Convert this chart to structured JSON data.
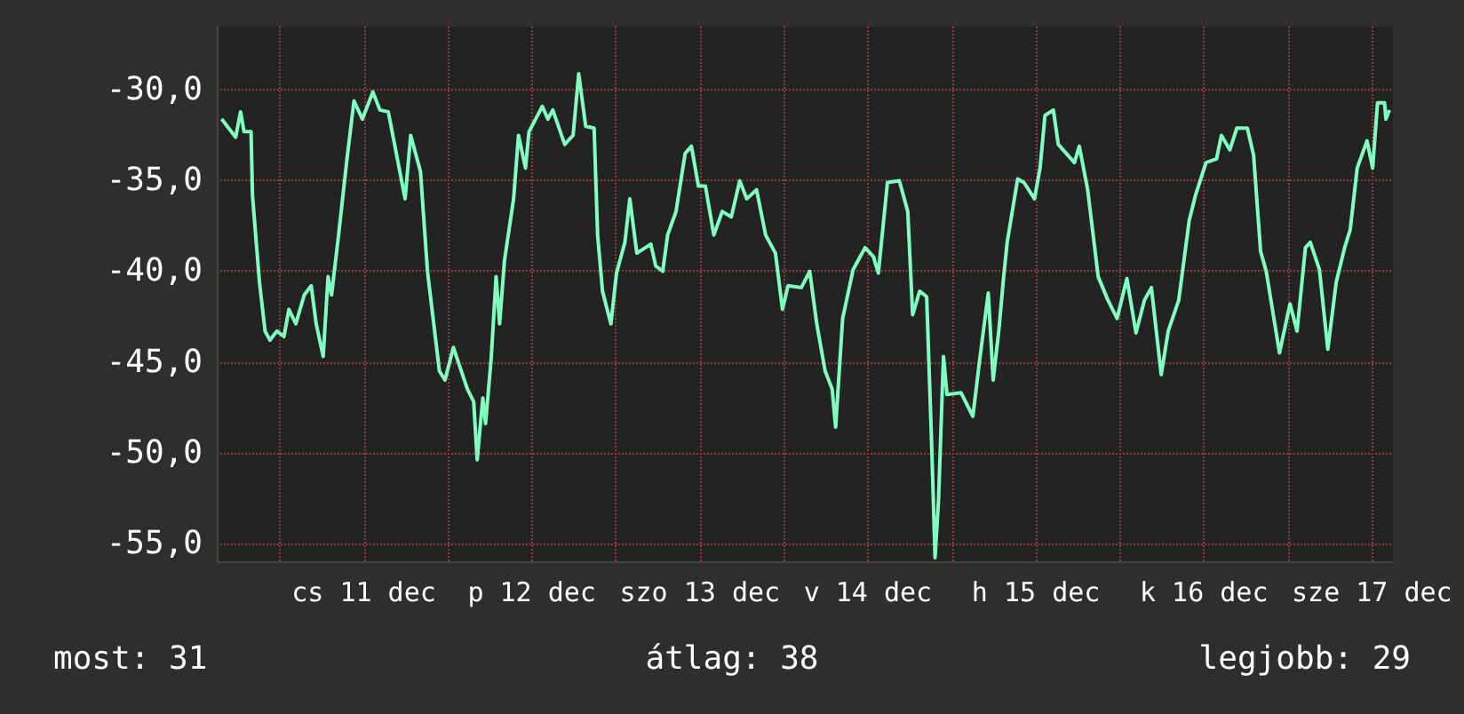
{
  "chart_data": {
    "type": "line",
    "x": [
      "--12-10T15:42",
      "--12-10T16:30",
      "--12-10T17:42",
      "--12-10T18:24",
      "--12-10T18:54",
      "--12-10T19:54",
      "--12-10T20:06",
      "--12-10T21:06",
      "--12-10T21:54",
      "--12-10T22:36",
      "--12-10T23:36",
      "--12-11T00:36",
      "--12-11T01:18",
      "--12-11T02:18",
      "--12-11T03:30",
      "--12-11T04:30",
      "--12-11T05:12",
      "--12-11T06:12",
      "--12-11T06:54",
      "--12-11T07:24",
      "--12-11T08:24",
      "--12-11T09:36",
      "--12-11T10:36",
      "--12-11T11:48",
      "--12-11T13:18",
      "--12-11T14:18",
      "--12-11T15:30",
      "--12-11T16:42",
      "--12-11T17:54",
      "--12-11T18:42",
      "--12-11T20:06",
      "--12-11T21:06",
      "--12-11T22:48",
      "--12-11T23:36",
      "--12-12T00:48",
      "--12-12T02:48",
      "--12-12T03:42",
      "--12-12T04:12",
      "--12-12T05:00",
      "--12-12T05:24",
      "--12-12T06:12",
      "--12-12T06:54",
      "--12-12T07:24",
      "--12-12T08:06",
      "--12-12T09:24",
      "--12-12T10:06",
      "--12-12T11:06",
      "--12-12T11:36",
      "--12-12T13:30",
      "--12-12T14:18",
      "--12-12T15:00",
      "--12-12T16:42",
      "--12-12T17:54",
      "--12-12T18:42",
      "--12-12T19:42",
      "--12-12T20:54",
      "--12-12T21:24",
      "--12-12T22:06",
      "--12-12T23:18",
      "--12-13T00:06",
      "--12-13T01:18",
      "--12-13T02:00",
      "--12-13T03:00",
      "--12-13T05:00",
      "--12-13T05:42",
      "--12-13T06:42",
      "--12-13T07:24",
      "--12-13T08:36",
      "--12-13T09:54",
      "--12-13T10:48",
      "--12-13T11:48",
      "--12-13T12:48",
      "--12-13T14:00",
      "--12-13T15:12",
      "--12-13T16:30",
      "--12-13T17:42",
      "--12-13T18:42",
      "--12-13T20:06",
      "--12-13T21:24",
      "--12-13T22:48",
      "--12-13T23:48",
      "--12-14T00:36",
      "--12-14T02:30",
      "--12-14T03:42",
      "--12-14T04:42",
      "--12-14T05:54",
      "--12-14T06:54",
      "--12-14T07:24",
      "--12-14T08:24",
      "--12-14T09:54",
      "--12-14T11:36",
      "--12-14T12:48",
      "--12-14T13:30",
      "--12-14T14:48",
      "--12-14T16:30",
      "--12-14T17:42",
      "--12-14T18:24",
      "--12-14T19:24",
      "--12-14T20:24",
      "--12-14T21:06",
      "--12-14T21:36",
      "--12-14T22:06",
      "--12-14T22:48",
      "--12-14T23:18",
      "--12-15T01:18",
      "--12-15T03:00",
      "--12-15T04:00",
      "--12-15T05:12",
      "--12-15T05:54",
      "--12-15T06:42",
      "--12-15T07:24",
      "--12-15T07:54",
      "--12-15T09:24",
      "--12-15T10:18",
      "--12-15T11:48",
      "--12-15T12:36",
      "--12-15T13:18",
      "--12-15T14:30",
      "--12-15T15:12",
      "--12-15T17:30",
      "--12-15T18:12",
      "--12-15T19:24",
      "--12-15T20:54",
      "--12-15T22:18",
      "--12-15T23:36",
      "--12-16T01:00",
      "--12-16T02:18",
      "--12-16T03:30",
      "--12-16T04:30",
      "--12-16T05:54",
      "--12-16T06:54",
      "--12-16T08:24",
      "--12-16T09:54",
      "--12-16T10:48",
      "--12-16T12:18",
      "--12-16T13:48",
      "--12-16T14:30",
      "--12-16T15:42",
      "--12-16T16:42",
      "--12-16T18:12",
      "--12-16T19:06",
      "--12-16T20:06",
      "--12-16T20:54",
      "--12-16T22:48",
      "--12-17T00:18",
      "--12-17T01:18",
      "--12-17T02:30",
      "--12-17T03:12",
      "--12-17T04:30",
      "--12-17T05:42",
      "--12-17T06:54",
      "--12-17T08:06",
      "--12-17T08:54",
      "--12-17T09:54",
      "--12-17T11:18",
      "--12-17T12:06",
      "--12-17T12:48",
      "--12-17T13:48",
      "--12-17T14:00",
      "--12-17T14:30"
    ],
    "series": [
      {
        "color": "#80ffbf",
        "values": [
          -31.6,
          -32.0,
          -32.6,
          -31.2,
          -32.3,
          -32.3,
          -35.8,
          -40.6,
          -43.3,
          -43.8,
          -43.3,
          -43.6,
          -42.1,
          -42.9,
          -41.3,
          -40.8,
          -42.9,
          -44.7,
          -40.3,
          -41.3,
          -38.0,
          -33.8,
          -30.6,
          -31.6,
          -30.1,
          -31.1,
          -31.2,
          -33.6,
          -36.0,
          -32.5,
          -34.5,
          -40.0,
          -45.5,
          -46.0,
          -44.2,
          -46.5,
          -47.2,
          -50.4,
          -47.0,
          -48.4,
          -44.8,
          -40.3,
          -42.9,
          -39.4,
          -36.0,
          -32.5,
          -34.3,
          -32.3,
          -30.9,
          -31.6,
          -31.1,
          -33.0,
          -32.5,
          -29.1,
          -32.0,
          -32.1,
          -38.0,
          -41.1,
          -42.9,
          -40.1,
          -38.4,
          -36.0,
          -39.0,
          -38.5,
          -39.7,
          -40.0,
          -38.0,
          -36.7,
          -33.5,
          -33.1,
          -35.3,
          -35.3,
          -38.0,
          -36.7,
          -37.0,
          -35.0,
          -36.0,
          -35.5,
          -38.0,
          -39.0,
          -42.1,
          -40.8,
          -40.9,
          -40.0,
          -42.9,
          -45.5,
          -46.5,
          -48.6,
          -42.6,
          -39.9,
          -38.7,
          -39.2,
          -40.1,
          -35.1,
          -35.0,
          -36.7,
          -42.4,
          -41.1,
          -41.4,
          -49.4,
          -55.8,
          -52.6,
          -44.7,
          -46.8,
          -46.7,
          -48.0,
          -44.8,
          -41.2,
          -46.0,
          -43.3,
          -40.3,
          -38.4,
          -34.9,
          -35.1,
          -36.0,
          -34.3,
          -31.4,
          -31.1,
          -33.0,
          -34.0,
          -33.1,
          -35.5,
          -40.3,
          -41.6,
          -42.6,
          -40.4,
          -43.4,
          -41.6,
          -40.9,
          -45.7,
          -43.3,
          -41.6,
          -37.2,
          -35.8,
          -34.0,
          -33.8,
          -32.5,
          -33.3,
          -32.1,
          -32.1,
          -33.6,
          -38.9,
          -40.0,
          -44.5,
          -41.8,
          -43.3,
          -38.7,
          -38.4,
          -39.9,
          -44.3,
          -40.6,
          -38.7,
          -37.7,
          -34.3,
          -32.8,
          -34.3,
          -30.7,
          -30.7,
          -31.6,
          -31.1
        ]
      }
    ],
    "xlim": [
      "--12-10T15:00",
      "--12-17T15:00"
    ],
    "xticks": [
      {
        "value": "--12-11",
        "label": null
      },
      {
        "value": "--12-11T12:00",
        "label": "cs 11 dec"
      },
      {
        "value": "--12-12",
        "label": null
      },
      {
        "value": "--12-12T12:00",
        "label": "p 12 dec"
      },
      {
        "value": "--12-13",
        "label": null
      },
      {
        "value": "--12-13T12:00",
        "label": "szo 13 dec"
      },
      {
        "value": "--12-14",
        "label": null
      },
      {
        "value": "--12-14T12:00",
        "label": "v 14 dec"
      },
      {
        "value": "--12-15",
        "label": null
      },
      {
        "value": "--12-15T12:00",
        "label": "h 15 dec"
      },
      {
        "value": "--12-16",
        "label": null
      },
      {
        "value": "--12-16T12:00",
        "label": "k 16 dec"
      },
      {
        "value": "--12-17",
        "label": null
      },
      {
        "value": "--12-17T12:00",
        "label": "sze 17 dec"
      }
    ],
    "ylim": [
      -56,
      -26.5
    ],
    "yticks": [
      {
        "value": -55,
        "label": "-55,0"
      },
      {
        "value": -50,
        "label": "-50,0"
      },
      {
        "value": -45,
        "label": "-45,0"
      },
      {
        "value": -40,
        "label": "-40,0"
      },
      {
        "value": -35,
        "label": "-35,0"
      },
      {
        "value": -30,
        "label": "-30,0"
      }
    ],
    "grid": true,
    "marker": "none",
    "line_style": "solid",
    "annotations": [
      "most: 31",
      "átlag: 38",
      "legjobb: 29"
    ]
  }
}
